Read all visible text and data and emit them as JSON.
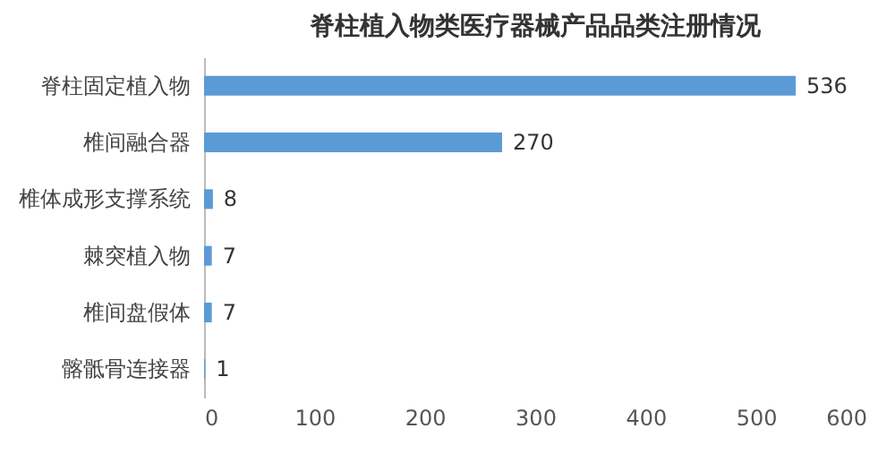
{
  "chart_data": {
    "type": "bar",
    "orientation": "horizontal",
    "title": "脊柱植入物类医疗器械产品品类注册情况",
    "categories": [
      "脊柱固定植入物",
      "椎间融合器",
      "椎体成形支撑系统",
      "棘突植入物",
      "椎间盘假体",
      "髂骶骨连接器"
    ],
    "values": [
      536,
      270,
      8,
      7,
      7,
      1
    ],
    "color": "#5b9bd5",
    "xlim": [
      0,
      600
    ],
    "xticks": [
      0,
      100,
      200,
      300,
      400,
      500,
      600
    ],
    "grid": false,
    "data_labels": true
  }
}
